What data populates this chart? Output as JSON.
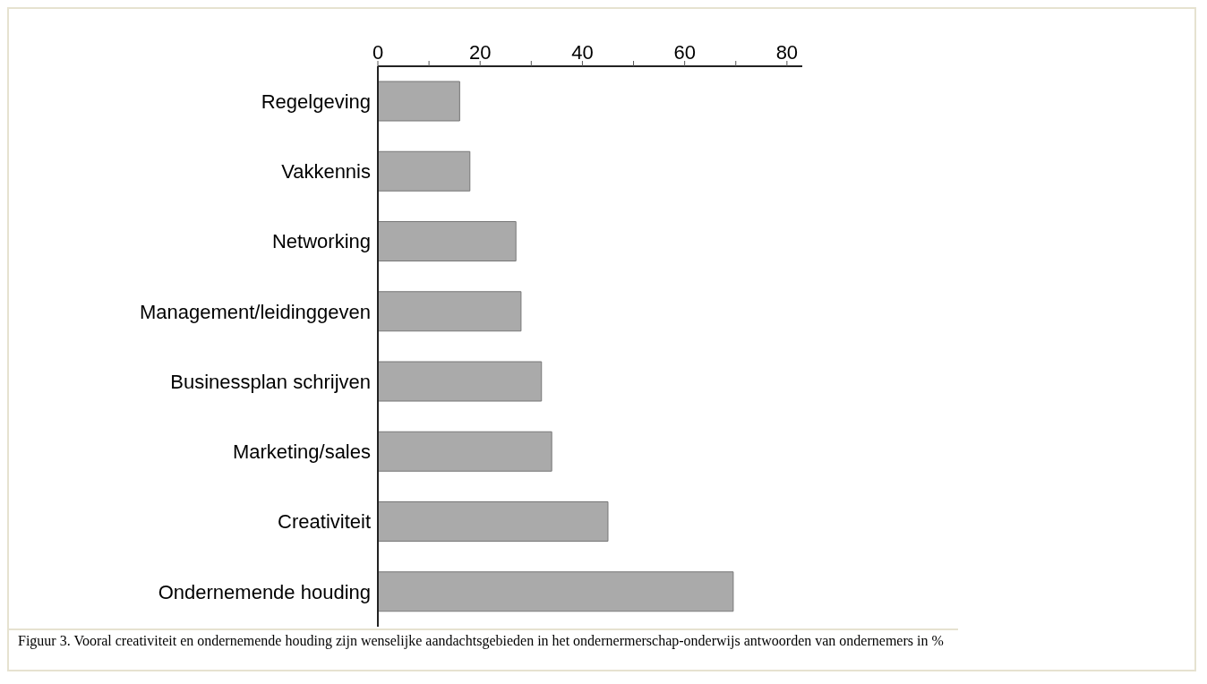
{
  "chart_data": {
    "type": "bar",
    "orientation": "horizontal",
    "categories": [
      "Regelgeving",
      "Vakkennis",
      "Networking",
      "Management/leidinggeven",
      "Businessplan schrijven",
      "Marketing/sales",
      "Creativiteit",
      "Ondernemende houding"
    ],
    "values": [
      16,
      18,
      27,
      28,
      32,
      34,
      45,
      69.5
    ],
    "color": "#aaaaaa",
    "xlim": [
      0,
      83
    ],
    "xticks": [
      0,
      {
        "value": 10,
        "label": null
      },
      20,
      {
        "value": 30,
        "label": null
      },
      40,
      {
        "value": 50,
        "label": null
      },
      60,
      {
        "value": 70,
        "label": null
      },
      80
    ],
    "grid": false,
    "annotations": [
      "Figuur 3. Vooral creativiteit en ondernemende houding zijn wenselijke aandachtsgebieden in het ondernermerschap-onderwijs antwoorden van ondernemers in %"
    ]
  }
}
